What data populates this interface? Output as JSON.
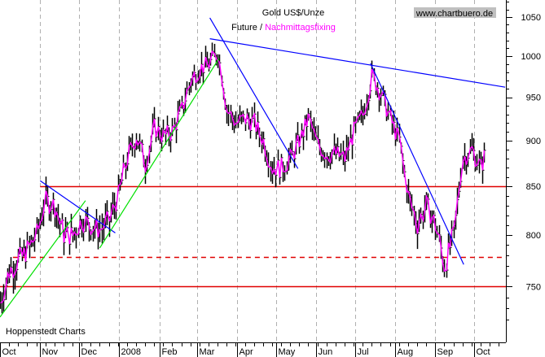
{
  "chart_data": {
    "type": "ohlc-bar",
    "title": "Gold US$/Unze",
    "subtitle_parts": [
      "Future / ",
      "Nachmittagsfixing"
    ],
    "source_label": "www.chartbuero.de",
    "credit": "Hoppenstedt Charts",
    "y_scale": "log",
    "ylim": [
      715,
      1075
    ],
    "y_ticks": [
      750,
      800,
      850,
      900,
      950,
      1000,
      1050
    ],
    "x_range": [
      "2007-10-01",
      "2008-10-27"
    ],
    "x_ticks": [
      {
        "date": "2007-10-01",
        "label": "Oct"
      },
      {
        "date": "2007-11-01",
        "label": "Nov"
      },
      {
        "date": "2007-12-01",
        "label": "Dec"
      },
      {
        "date": "2008-01-01",
        "label": "2008"
      },
      {
        "date": "2008-02-01",
        "label": "Feb"
      },
      {
        "date": "2008-03-01",
        "label": "Mar"
      },
      {
        "date": "2008-04-01",
        "label": "Apr"
      },
      {
        "date": "2008-05-01",
        "label": "May"
      },
      {
        "date": "2008-06-01",
        "label": "Jun"
      },
      {
        "date": "2008-07-01",
        "label": "Jul"
      },
      {
        "date": "2008-08-01",
        "label": "Aug"
      },
      {
        "date": "2008-09-01",
        "label": "Sep"
      },
      {
        "date": "2008-10-01",
        "label": "Oct"
      }
    ],
    "grid": "vertical dashed at month starts",
    "colors": {
      "bars": "#000000",
      "fixing": "#ff00ff",
      "support": "#e00000",
      "trend_down": "#0000ff",
      "trend_up": "#00e000",
      "grid": "#b0b0b0",
      "source_bg": "#c0c0c0"
    },
    "weekly_closes": [
      [
        "2007-10-01",
        735
      ],
      [
        "2007-10-08",
        765
      ],
      [
        "2007-10-15",
        775
      ],
      [
        "2007-10-22",
        785
      ],
      [
        "2007-10-29",
        800
      ],
      [
        "2007-11-05",
        835
      ],
      [
        "2007-11-12",
        830
      ],
      [
        "2007-11-19",
        800
      ],
      [
        "2007-11-26",
        800
      ],
      [
        "2007-12-03",
        815
      ],
      [
        "2007-12-10",
        810
      ],
      [
        "2007-12-17",
        805
      ],
      [
        "2007-12-24",
        815
      ],
      [
        "2007-12-31",
        840
      ],
      [
        "2008-01-07",
        880
      ],
      [
        "2008-01-14",
        905
      ],
      [
        "2008-01-21",
        875
      ],
      [
        "2008-01-28",
        915
      ],
      [
        "2008-02-04",
        905
      ],
      [
        "2008-02-11",
        910
      ],
      [
        "2008-02-18",
        935
      ],
      [
        "2008-02-25",
        970
      ],
      [
        "2008-03-03",
        985
      ],
      [
        "2008-03-10",
        990
      ],
      [
        "2008-03-17",
        1005
      ],
      [
        "2008-03-24",
        935
      ],
      [
        "2008-03-31",
        920
      ],
      [
        "2008-04-07",
        925
      ],
      [
        "2008-04-14",
        920
      ],
      [
        "2008-04-21",
        900
      ],
      [
        "2008-04-28",
        870
      ],
      [
        "2008-05-05",
        870
      ],
      [
        "2008-05-12",
        880
      ],
      [
        "2008-05-19",
        900
      ],
      [
        "2008-05-26",
        925
      ],
      [
        "2008-06-02",
        895
      ],
      [
        "2008-06-09",
        885
      ],
      [
        "2008-06-16",
        885
      ],
      [
        "2008-06-23",
        880
      ],
      [
        "2008-06-30",
        910
      ],
      [
        "2008-07-07",
        930
      ],
      [
        "2008-07-14",
        975
      ],
      [
        "2008-07-21",
        955
      ],
      [
        "2008-07-28",
        925
      ],
      [
        "2008-08-04",
        900
      ],
      [
        "2008-08-11",
        840
      ],
      [
        "2008-08-18",
        810
      ],
      [
        "2008-08-25",
        830
      ],
      [
        "2008-09-01",
        810
      ],
      [
        "2008-09-08",
        770
      ],
      [
        "2008-09-15",
        800
      ],
      [
        "2008-09-22",
        880
      ],
      [
        "2008-09-29",
        890
      ],
      [
        "2008-10-06",
        870
      ],
      [
        "2008-10-13",
        900
      ]
    ],
    "horizontal_levels": [
      {
        "value": 850,
        "style": "solid",
        "from": "2007-11-01"
      },
      {
        "value": 778,
        "style": "dashed",
        "from": "2007-10-11"
      },
      {
        "value": 750,
        "style": "solid",
        "from": "2007-10-01"
      }
    ],
    "trendlines": [
      {
        "color": "down",
        "from": [
          "2007-11-01",
          856
        ],
        "to": [
          "2007-12-29",
          802
        ]
      },
      {
        "color": "down",
        "from": [
          "2008-03-11",
          1049
        ],
        "to": [
          "2008-05-18",
          869
        ]
      },
      {
        "color": "down",
        "from": [
          "2008-03-11",
          1022
        ],
        "to": [
          "2008-10-25",
          962
        ]
      },
      {
        "color": "down",
        "from": [
          "2008-07-13",
          991
        ],
        "to": [
          "2008-09-23",
          771
        ]
      },
      {
        "color": "up",
        "from": [
          "2007-10-01",
          722
        ],
        "to": [
          "2007-12-06",
          835
        ]
      },
      {
        "color": "up",
        "from": [
          "2007-12-17",
          787
        ],
        "to": [
          "2008-03-18",
          997
        ]
      }
    ]
  }
}
